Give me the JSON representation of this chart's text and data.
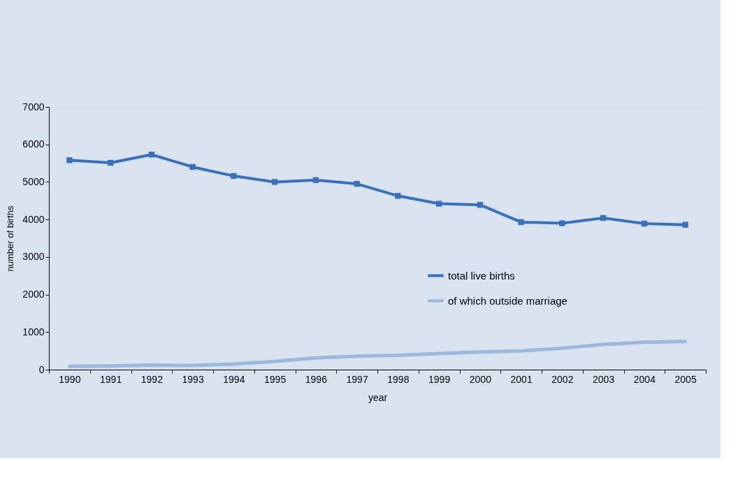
{
  "chart_data": {
    "type": "line",
    "xlabel": "year",
    "ylabel": "number of births",
    "categories": [
      "1990",
      "1991",
      "1992",
      "1993",
      "1994",
      "1995",
      "1996",
      "1997",
      "1998",
      "1999",
      "2000",
      "2001",
      "2002",
      "2003",
      "2004",
      "2005"
    ],
    "series": [
      {
        "name": "total live births",
        "color": "#3b70b9",
        "marker": "square",
        "values": [
          5580,
          5510,
          5730,
          5400,
          5160,
          5000,
          5050,
          4950,
          4630,
          4420,
          4390,
          3930,
          3900,
          4040,
          3890,
          3860
        ]
      },
      {
        "name": "of which outside marriage",
        "color": "#9db7dd",
        "marker": "none",
        "values": [
          90,
          100,
          120,
          110,
          150,
          220,
          310,
          360,
          380,
          430,
          470,
          500,
          570,
          670,
          730,
          750
        ]
      }
    ],
    "ylim": [
      0,
      7000
    ],
    "yticks": [
      0,
      1000,
      2000,
      3000,
      4000,
      5000,
      6000,
      7000
    ],
    "grid": false,
    "legend": "right"
  }
}
